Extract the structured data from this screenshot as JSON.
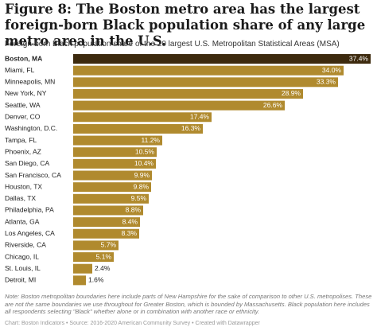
{
  "chart_data": {
    "type": "hbar",
    "title": "Figure 8: The Boston metro area has the largest foreign-born Black population share of any large metro area in the U.S.",
    "subtitle": "Foreign-born Black population share of the 20 largest U.S. Metropolitan Statistical Areas (MSA)",
    "categories": [
      "Boston, MA",
      "Miami, FL",
      "Minneapolis, MN",
      "New York, NY",
      "Seattle, WA",
      "Denver, CO",
      "Washington, D.C.",
      "Tampa, FL",
      "Phoenix, AZ",
      "San Diego, CA",
      "San Francisco, CA",
      "Houston, TX",
      "Dallas, TX",
      "Philadelphia, PA",
      "Atlanta, GA",
      "Los Angeles, CA",
      "Riverside, CA",
      "Chicago, IL",
      "St. Louis, IL",
      "Detroit, MI"
    ],
    "values": [
      37.4,
      34.0,
      33.3,
      28.9,
      26.6,
      17.4,
      16.3,
      11.2,
      10.5,
      10.4,
      9.9,
      9.8,
      9.5,
      8.8,
      8.4,
      8.3,
      5.7,
      5.1,
      2.4,
      1.6
    ],
    "value_labels": [
      "37.4%",
      "34.0%",
      "33.3%",
      "28.9%",
      "26.6%",
      "17.4%",
      "16.3%",
      "11.2%",
      "10.5%",
      "10.4%",
      "9.9%",
      "9.8%",
      "9.5%",
      "8.8%",
      "8.4%",
      "8.3%",
      "5.7%",
      "5.1%",
      "2.4%",
      "1.6%"
    ],
    "colors": [
      "#3d2a0e",
      "#b08a2e",
      "#b08a2e",
      "#b08a2e",
      "#b08a2e",
      "#b08a2e",
      "#b08a2e",
      "#b08a2e",
      "#b08a2e",
      "#b08a2e",
      "#b08a2e",
      "#b08a2e",
      "#b08a2e",
      "#b08a2e",
      "#b08a2e",
      "#b08a2e",
      "#b08a2e",
      "#b08a2e",
      "#b08a2e",
      "#b08a2e"
    ],
    "note": "Note: Boston metropolitan boundaries here include parts of New Hampshire for the sake of comparison to other U.S. metropolises. These are not the same boundaries we use throughout for Greater Boston, which is bounded by Massachusetts. Black population here includes all respondents selecting \"Black\" whether alone or in combination with another race or ethnicity.",
    "footer": "Chart: Boston Indicators • Source: 2016-2020 American Community Survey • Created with Datawrapper"
  }
}
